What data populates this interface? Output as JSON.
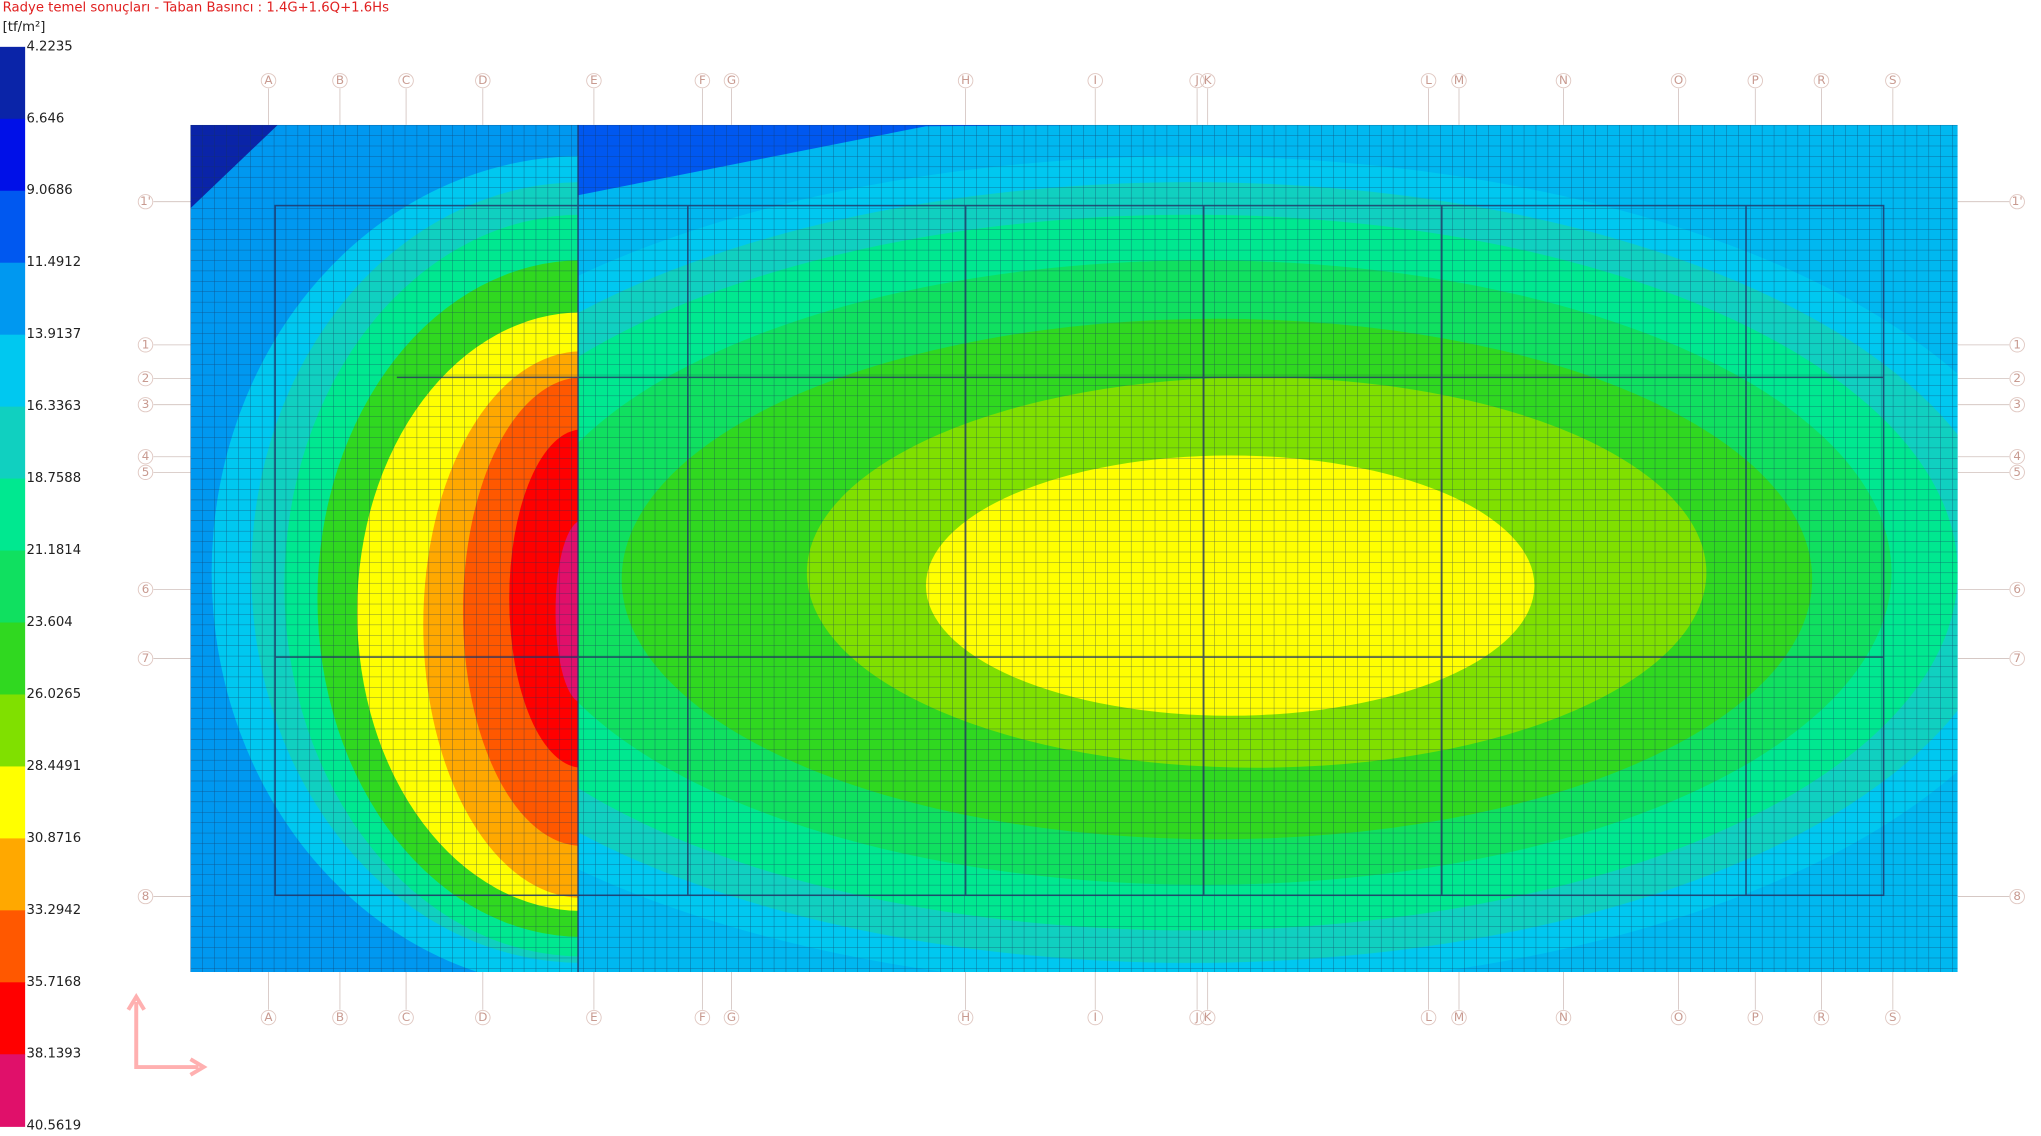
{
  "title": "Radye temel sonuçları - Taban Basıncı : 1.4G+1.6Q+1.6Hs",
  "legend": {
    "unit": "[tf/m²]",
    "labels": [
      "4.2235",
      "6.646",
      "9.0686",
      "11.4912",
      "13.9137",
      "16.3363",
      "18.7588",
      "21.1814",
      "23.604",
      "26.0265",
      "28.4491",
      "30.8716",
      "33.2942",
      "35.7168",
      "38.1393",
      "40.5619"
    ],
    "colors": [
      "#0a24a8",
      "#0010e8",
      "#0058f0",
      "#0098f0",
      "#00c8f0",
      "#10d0c0",
      "#00e890",
      "#10e060",
      "#30d820",
      "#80e000",
      "#ffff00",
      "#ffa800",
      "#ff5800",
      "#ff0000",
      "#e0106a"
    ]
  },
  "axes": {
    "columns": [
      "A",
      "B",
      "C",
      "D",
      "E",
      "F",
      "G",
      "H",
      "I",
      "J",
      "K",
      "L",
      "M",
      "N",
      "O",
      "P",
      "R",
      "S"
    ],
    "rows": [
      "1'",
      "1",
      "2",
      "3",
      "4",
      "5",
      "6",
      "7",
      "8"
    ]
  }
}
